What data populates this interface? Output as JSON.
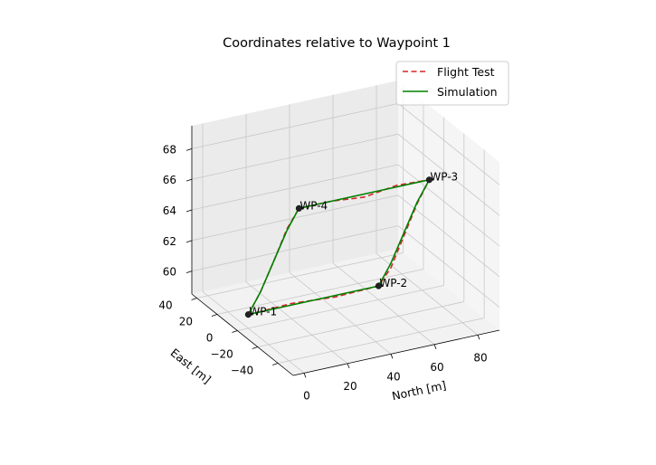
{
  "chart_data": {
    "type": "line",
    "title": "Coordinates relative to Waypoint 1",
    "xlabel": "North [m]",
    "ylabel": "East [m]",
    "zlabel": "",
    "xlim": [
      -5,
      90
    ],
    "ylim": [
      -55,
      45
    ],
    "zlim": [
      58.5,
      69.5
    ],
    "xticks": [
      "0",
      "20",
      "40",
      "60",
      "80"
    ],
    "xtick_values": [
      0,
      20,
      40,
      60,
      80
    ],
    "yticks": [
      "40",
      "20",
      "0",
      "−20",
      "−40"
    ],
    "ytick_values": [
      40,
      20,
      0,
      -20,
      -40
    ],
    "zticks": [
      "60",
      "62",
      "64",
      "66",
      "68"
    ],
    "ztick_values": [
      60,
      62,
      64,
      66,
      68
    ],
    "grid": true,
    "legend_position": "top-right",
    "waypoints": [
      {
        "label": "WP-1",
        "x": 0,
        "y": 0,
        "z": 59.4
      },
      {
        "label": "WP-2",
        "x": 60,
        "y": 0,
        "z": 59.4
      },
      {
        "label": "WP-3",
        "x": 60,
        "y": -50,
        "z": 69
      },
      {
        "label": "WP-4",
        "x": 0,
        "y": -50,
        "z": 69
      }
    ],
    "series": [
      {
        "name": "Flight Test",
        "color": "#d62728",
        "style": "dashed",
        "points": [
          [
            0,
            0,
            59.4
          ],
          [
            20,
            0,
            59.5
          ],
          [
            40,
            0,
            59.3
          ],
          [
            60,
            0,
            59.4
          ],
          [
            60,
            -12,
            61.2
          ],
          [
            60,
            -25,
            64.0
          ],
          [
            60,
            -38,
            66.8
          ],
          [
            60,
            -50,
            69
          ],
          [
            45,
            -50,
            69.1
          ],
          [
            30,
            -50,
            68.8
          ],
          [
            15,
            -50,
            69.0
          ],
          [
            0,
            -50,
            69
          ],
          [
            0,
            -38,
            67.0
          ],
          [
            0,
            -25,
            64.2
          ],
          [
            0,
            -12,
            61.5
          ],
          [
            0,
            0,
            59.4
          ]
        ]
      },
      {
        "name": "Simulation",
        "color": "#008000",
        "style": "solid",
        "points": [
          [
            0,
            0,
            59.4
          ],
          [
            20,
            0,
            59.4
          ],
          [
            40,
            0,
            59.4
          ],
          [
            60,
            0,
            59.4
          ],
          [
            60,
            -12,
            61.5
          ],
          [
            60,
            -25,
            64.2
          ],
          [
            60,
            -38,
            66.9
          ],
          [
            60,
            -50,
            69
          ],
          [
            45,
            -50,
            69
          ],
          [
            30,
            -50,
            69
          ],
          [
            15,
            -50,
            69
          ],
          [
            0,
            -50,
            69
          ],
          [
            0,
            -38,
            66.9
          ],
          [
            0,
            -25,
            64.2
          ],
          [
            0,
            -12,
            61.5
          ],
          [
            0,
            0,
            59.4
          ]
        ]
      }
    ]
  }
}
